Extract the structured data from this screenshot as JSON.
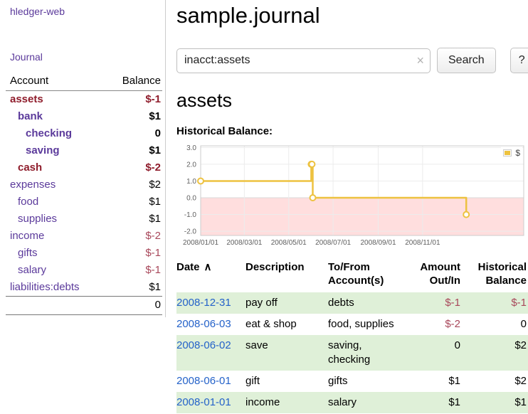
{
  "colors": {
    "link_purple": "#5b3a9b",
    "date_link_blue": "#2462c9",
    "negative": "#a8475a",
    "negative_strong": "#8f1d2c",
    "row_shade_green": "#dff0d8",
    "series_yellow": "#edc240"
  },
  "app": {
    "brand": "hledger-web",
    "nav": {
      "journal": "Journal"
    }
  },
  "sidebar": {
    "headers": {
      "account": "Account",
      "balance": "Balance"
    },
    "accounts": [
      {
        "name": "assets",
        "balance": "$-1",
        "indent": 0,
        "bold": true,
        "name_negative": true,
        "balance_negative": true
      },
      {
        "name": "bank",
        "balance": "$1",
        "indent": 1,
        "bold": true,
        "name_negative": false,
        "balance_negative": false
      },
      {
        "name": "checking",
        "balance": "0",
        "indent": 2,
        "bold": true,
        "name_negative": false,
        "balance_negative": false
      },
      {
        "name": "saving",
        "balance": "$1",
        "indent": 2,
        "bold": true,
        "name_negative": false,
        "balance_negative": false
      },
      {
        "name": "cash",
        "balance": "$-2",
        "indent": 1,
        "bold": true,
        "name_negative": true,
        "balance_negative": true
      },
      {
        "name": "expenses",
        "balance": "$2",
        "indent": 0,
        "bold": false,
        "name_negative": false,
        "balance_negative": false
      },
      {
        "name": "food",
        "balance": "$1",
        "indent": 1,
        "bold": false,
        "name_negative": false,
        "balance_negative": false
      },
      {
        "name": "supplies",
        "balance": "$1",
        "indent": 1,
        "bold": false,
        "name_negative": false,
        "balance_negative": false
      },
      {
        "name": "income",
        "balance": "$-2",
        "indent": 0,
        "bold": false,
        "name_negative": false,
        "balance_negative": true
      },
      {
        "name": "gifts",
        "balance": "$-1",
        "indent": 1,
        "bold": false,
        "name_negative": false,
        "balance_negative": true
      },
      {
        "name": "salary",
        "balance": "$-1",
        "indent": 1,
        "bold": false,
        "name_negative": false,
        "balance_negative": true
      },
      {
        "name": "liabilities:debts",
        "balance": "$1",
        "indent": 0,
        "bold": false,
        "name_negative": false,
        "balance_negative": false
      }
    ],
    "total": "0"
  },
  "main": {
    "title": "sample.journal",
    "search": {
      "value": "inacct:assets",
      "clear_icon": "×",
      "button": "Search",
      "help_button": "?"
    },
    "account_heading": "assets"
  },
  "chart_data": {
    "type": "line",
    "title": "Historical Balance:",
    "step": true,
    "legend_label": "$",
    "legend_position": "top-right",
    "series_color": "#edc240",
    "marker": "open-circle",
    "points": [
      {
        "date": "2008-01-01",
        "value": 1
      },
      {
        "date": "2008-06-01",
        "value": 2
      },
      {
        "date": "2008-06-02",
        "value": 2
      },
      {
        "date": "2008-06-03",
        "value": 0
      },
      {
        "date": "2008-12-31",
        "value": -1
      }
    ],
    "yticks": [
      3.0,
      2.0,
      1.0,
      0.0,
      -1.0,
      -2.0
    ],
    "ylim": [
      -2.25,
      3.1
    ],
    "xticks": [
      "2008/01/01",
      "2008/03/01",
      "2008/05/01",
      "2008/07/01",
      "2008/09/01",
      "2008/11/01"
    ],
    "xlim": [
      "2008-01-01",
      "2009-03-20"
    ],
    "grid": true,
    "negative_region": {
      "from": 0,
      "color": "#ffdede"
    }
  },
  "register": {
    "headers": {
      "date": "Date",
      "sort_indicator": "∧",
      "description": "Description",
      "accounts": "To/From Account(s)",
      "amount": "Amount Out/In",
      "balance": "Historical Balance"
    },
    "rows": [
      {
        "date": "2008-12-31",
        "description": "pay off",
        "accounts": "debts",
        "amount": "$-1",
        "amount_negative": true,
        "balance": "$-1",
        "balance_negative": true
      },
      {
        "date": "2008-06-03",
        "description": "eat & shop",
        "accounts": "food, supplies",
        "amount": "$-2",
        "amount_negative": true,
        "balance": "0",
        "balance_negative": false
      },
      {
        "date": "2008-06-02",
        "description": "save",
        "accounts": "saving, checking",
        "amount": "0",
        "amount_negative": false,
        "balance": "$2",
        "balance_negative": false
      },
      {
        "date": "2008-06-01",
        "description": "gift",
        "accounts": "gifts",
        "amount": "$1",
        "amount_negative": false,
        "balance": "$2",
        "balance_negative": false
      },
      {
        "date": "2008-01-01",
        "description": "income",
        "accounts": "salary",
        "amount": "$1",
        "amount_negative": false,
        "balance": "$1",
        "balance_negative": false
      }
    ]
  }
}
